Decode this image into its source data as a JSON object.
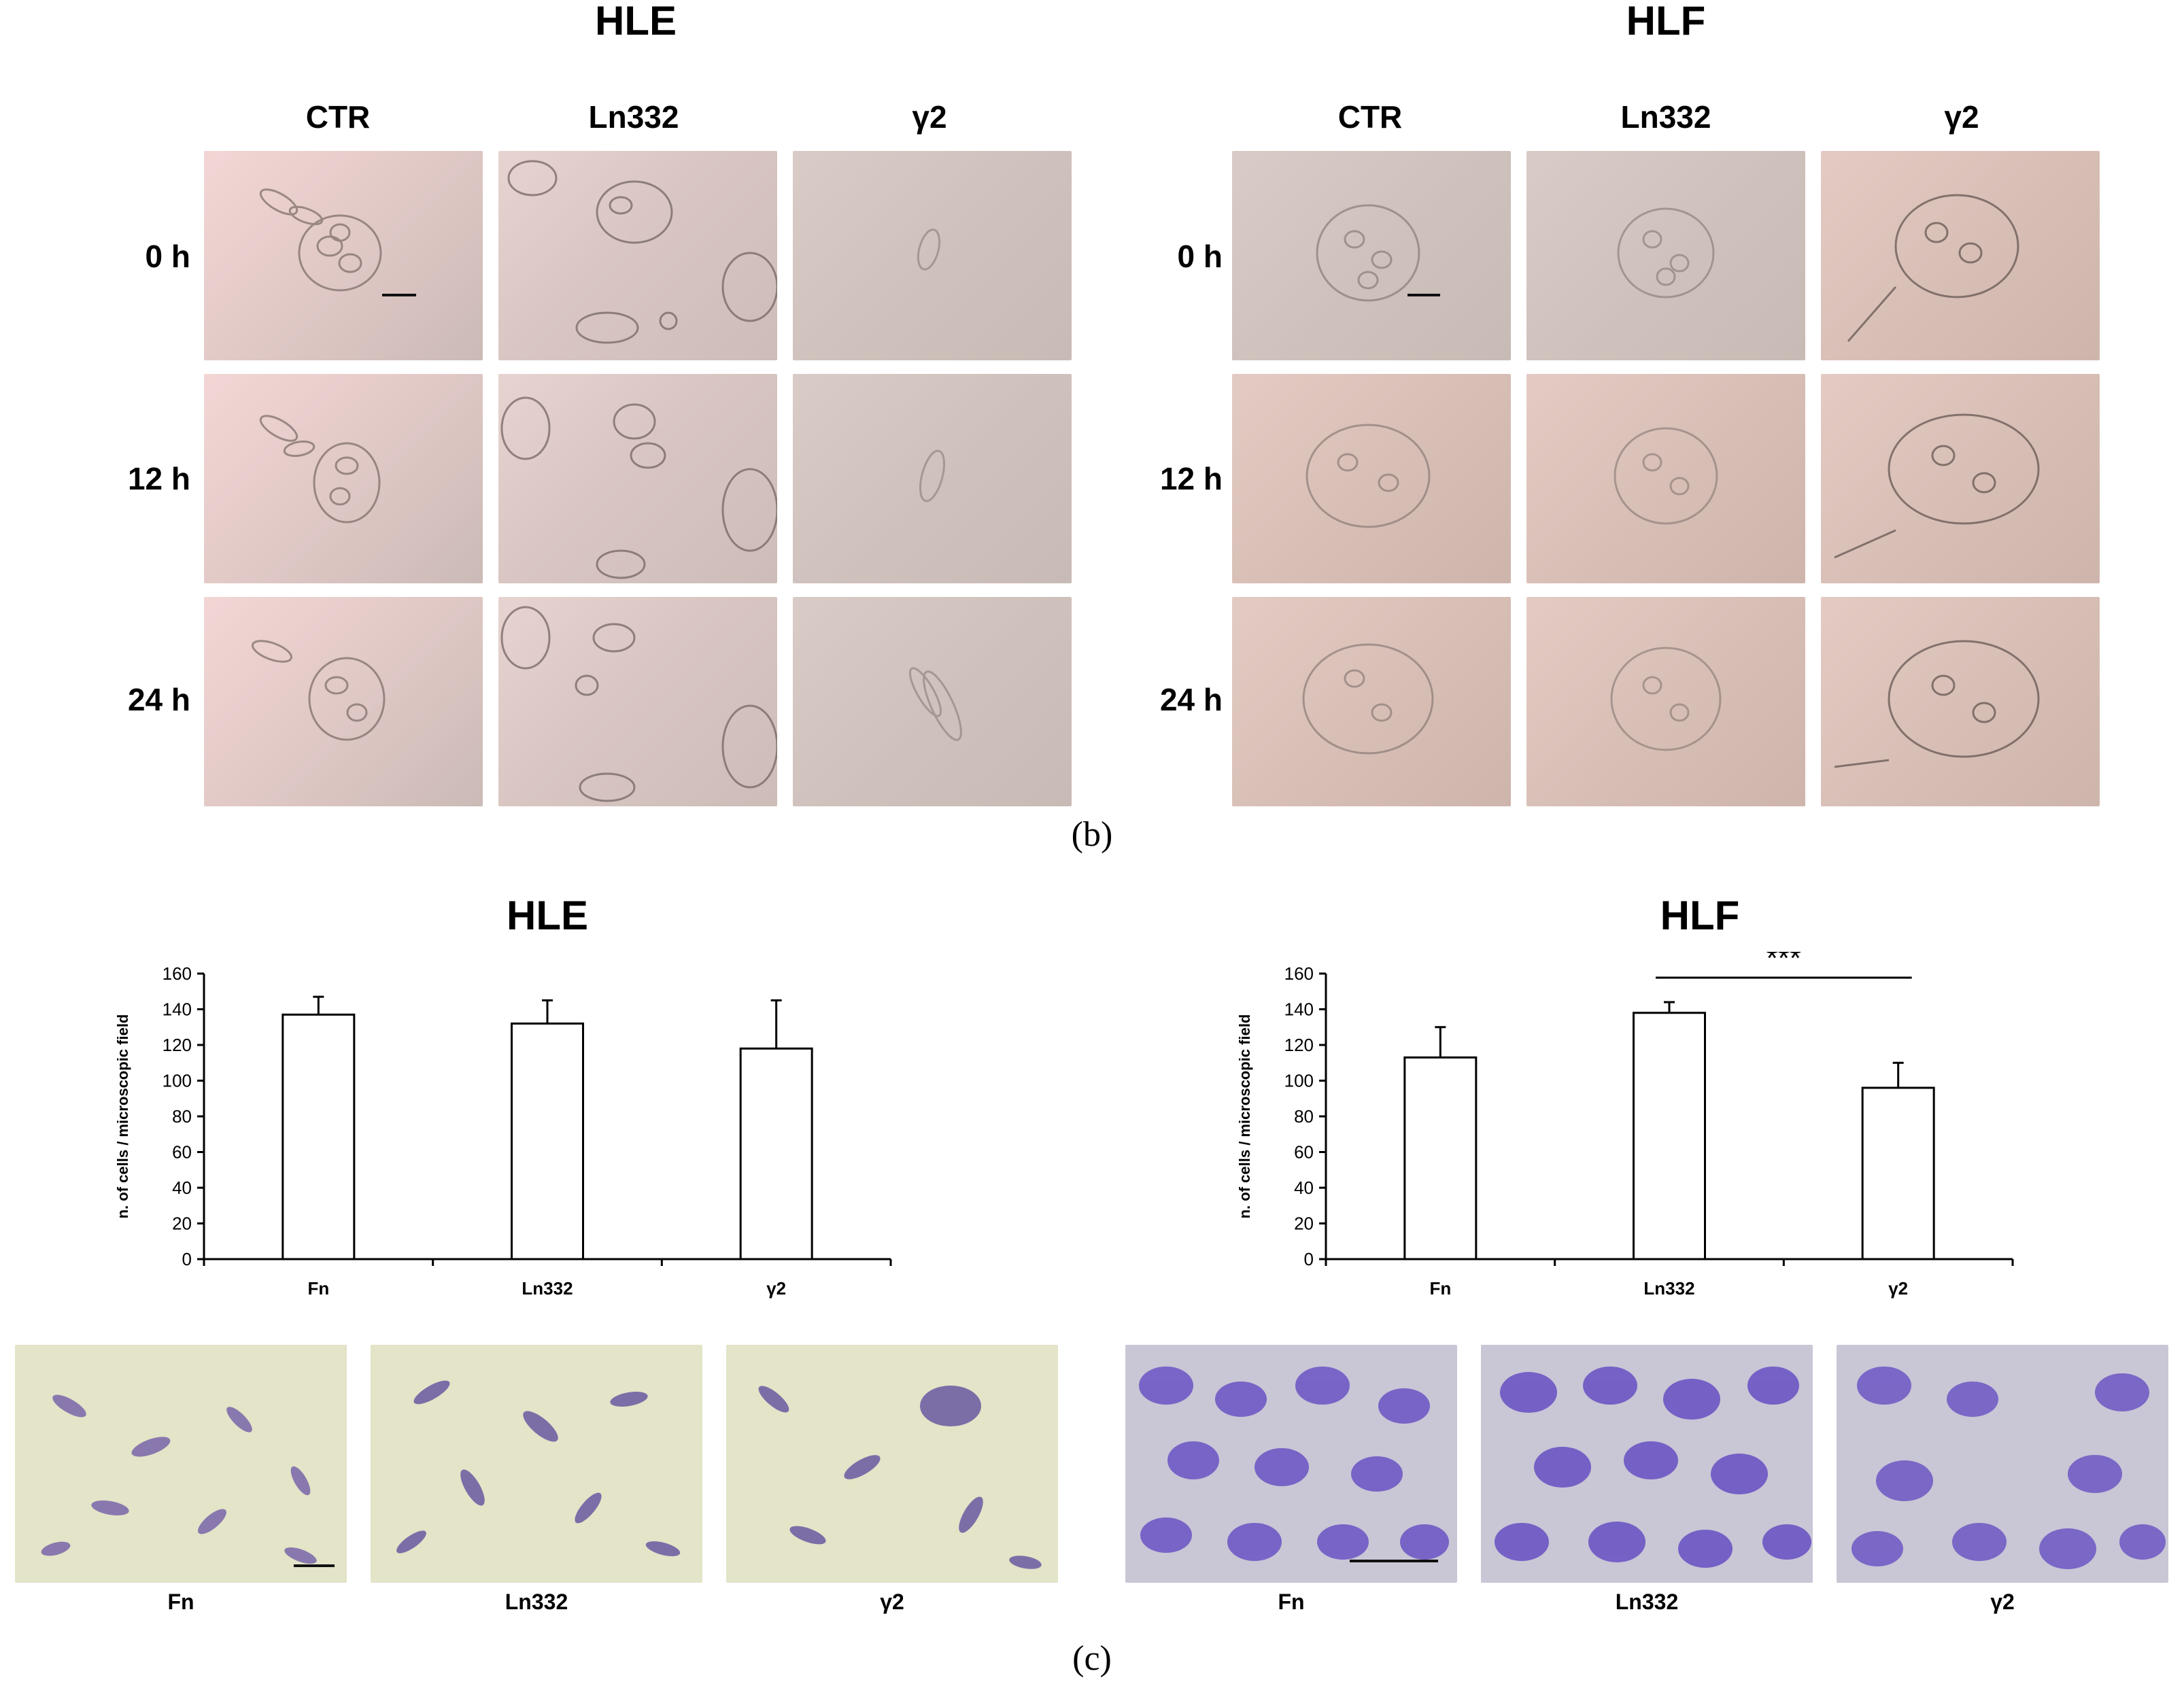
{
  "panel_b": {
    "label": "(b)",
    "left_title": "HLE",
    "right_title": "HLF",
    "columns": [
      "CTR",
      "Ln332",
      "γ2"
    ],
    "rows": [
      "0 h",
      "12 h",
      "24 h"
    ]
  },
  "panel_c": {
    "label": "(c)",
    "left_title": "HLE",
    "right_title": "HLF",
    "image_captions": [
      "Fn",
      "Ln332",
      "γ2"
    ],
    "significance": "***"
  },
  "chart_data": [
    {
      "type": "bar",
      "title": "HLE",
      "categories": [
        "Fn",
        "Ln332",
        "γ2"
      ],
      "values": [
        137,
        132,
        118
      ],
      "errors": [
        10,
        13,
        27
      ],
      "ylabel": "n. of cells / microscopic field",
      "ylim": [
        0,
        160
      ],
      "yticks": [
        0,
        20,
        40,
        60,
        80,
        100,
        120,
        140,
        160
      ],
      "grid": false,
      "bar_color": "#ffffff"
    },
    {
      "type": "bar",
      "title": "HLF",
      "categories": [
        "Fn",
        "Ln332",
        "γ2"
      ],
      "values": [
        113,
        138,
        96
      ],
      "errors": [
        17,
        6,
        14
      ],
      "ylabel": "n. of cells / microscopic field",
      "ylim": [
        0,
        160
      ],
      "yticks": [
        0,
        20,
        40,
        60,
        80,
        100,
        120,
        140,
        160
      ],
      "grid": false,
      "bar_color": "#ffffff",
      "annotation": {
        "text": "***",
        "from": "Ln332",
        "to": "γ2"
      }
    }
  ]
}
